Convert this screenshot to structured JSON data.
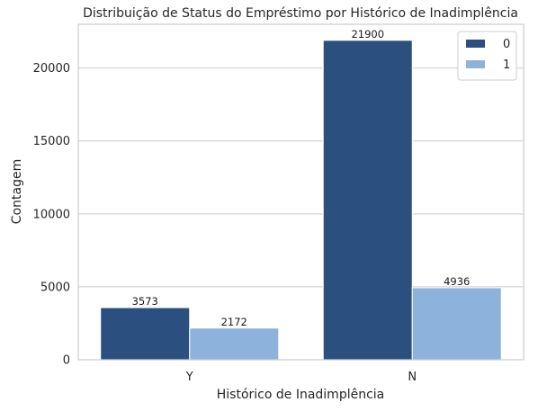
{
  "chart_data": {
    "type": "bar",
    "title": "Distribuição de Status do Empréstimo por Histórico de Inadimplência",
    "xlabel": "Histórico de Inadimplência",
    "ylabel": "Contagem",
    "categories": [
      "Y",
      "N"
    ],
    "series": [
      {
        "name": "0",
        "values": [
          3573,
          21900
        ],
        "color": "#2b4f7e"
      },
      {
        "name": "1",
        "values": [
          2172,
          4936
        ],
        "color": "#8db3dd"
      }
    ],
    "ylim": [
      0,
      23000
    ],
    "yticks": [
      0,
      5000,
      10000,
      15000,
      20000
    ],
    "grid": true,
    "grid_axis": "y",
    "legend_position": "top-right",
    "data_labels": true
  }
}
